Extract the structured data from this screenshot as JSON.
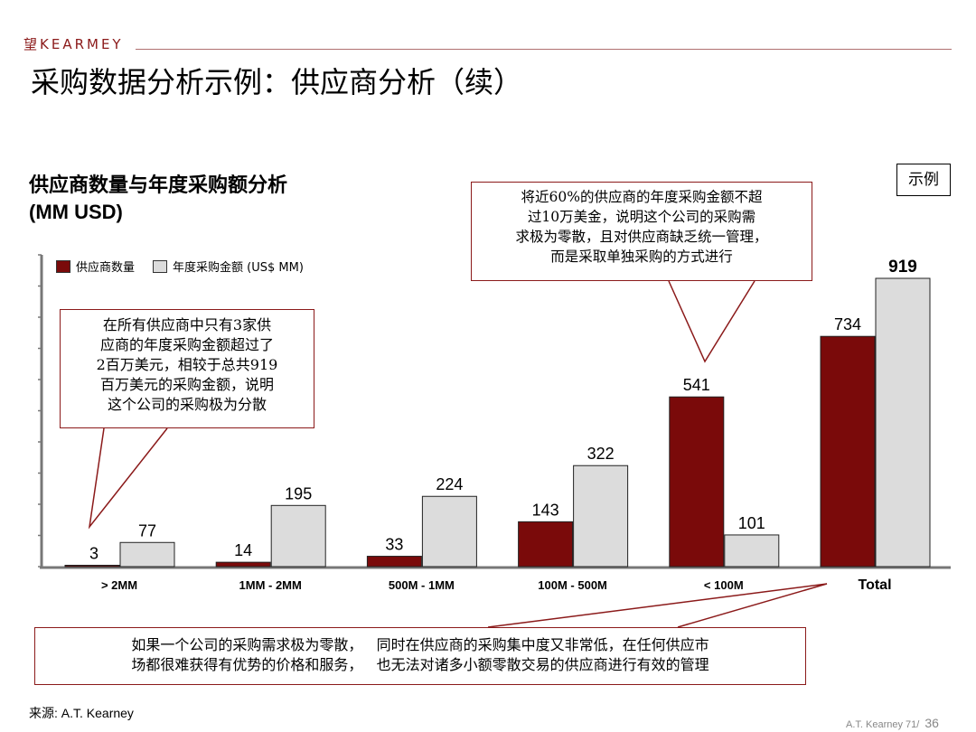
{
  "header": {
    "logo": "望KEARMEY",
    "title": "采购数据分析示例：供应商分析（续）"
  },
  "subtitle": {
    "line1": "供应商数量与年度采购额分析",
    "line2": "(MM USD)"
  },
  "example_label": "示例",
  "callouts": {
    "left": [
      "在所有供应商中只有3家供",
      "应商的年度采购金额超过了",
      "2百万美元，相较于总共919",
      "百万美元的采购金额，说明",
      "这个公司的采购极为分散"
    ],
    "top": [
      "将近60%的供应商的年度采购金额不超",
      "过10万美金，说明这个公司的采购需",
      "求极为零散，且对供应商缺乏统一管理，",
      "而是采取单独采购的方式进行"
    ],
    "bottom": [
      "如果一个公司的采购需求极为零散，   同时在供应商的采购集中度又非常低，在任何供应市",
      "场都很难获得有优势的价格和服务，   也无法对诸多小额零散交易的供应商进行有效的管理"
    ]
  },
  "source": "来源: A.T. Kearney",
  "footer": {
    "text": "A.T.  Kearney  71/",
    "page": "36"
  },
  "colors": {
    "series1": "#7a0a0a",
    "series2": "#dcdcdc",
    "accent": "#8b1a1a"
  },
  "chart_data": {
    "type": "bar",
    "categories": [
      "> 2MM",
      "1MM - 2MM",
      "500M - 1MM",
      "100M - 500M",
      "< 100M",
      "Total"
    ],
    "series": [
      {
        "name": "供应商数量",
        "values": [
          3,
          14,
          33,
          143,
          541,
          734
        ]
      },
      {
        "name": "年度采购金额 (US$ MM)",
        "values": [
          77,
          195,
          224,
          322,
          101,
          919
        ]
      }
    ],
    "ylim": [
      0,
      919
    ],
    "legend": "top-left",
    "grid": false
  }
}
